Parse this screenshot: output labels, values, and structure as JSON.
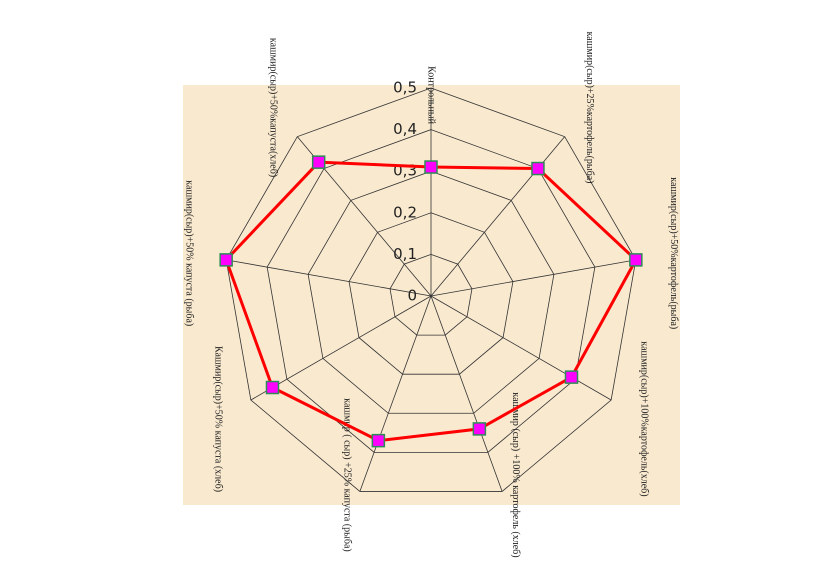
{
  "chart_data": {
    "type": "radar",
    "categories": [
      "Контрольный",
      "кашмир(сыр)+25%картофель(рыба)",
      "кашмир(сыр)+50%картофель(рыба)",
      "кашмир(сыр)+100%картофель(хлеб)",
      "кашмир (сыр) +100% картофель (хлеб)",
      "кашмир ( сыр) +25% капуста (рыба)",
      "Кашмир(сыр)+50% капуста (хлеб)",
      "кашмир(сыр)+50% капуста (рыба)",
      "кашмир(сыр)+50%капуста(хлеб)"
    ],
    "values": [
      0.31,
      0.4,
      0.5,
      0.39,
      0.34,
      0.37,
      0.44,
      0.5,
      0.42
    ],
    "color": "#ff0000",
    "marker_color": "#ff00ff",
    "ylim": [
      0,
      0.5
    ],
    "yticks": [
      0,
      {
        "value": 0.1,
        "label": "0,1"
      },
      {
        "value": 0.2,
        "label": "0,2"
      },
      {
        "value": 0.3,
        "label": "0,3"
      },
      {
        "value": 0.4,
        "label": "0,4"
      },
      {
        "value": 0.5,
        "label": "0,5"
      }
    ],
    "grid": true
  }
}
